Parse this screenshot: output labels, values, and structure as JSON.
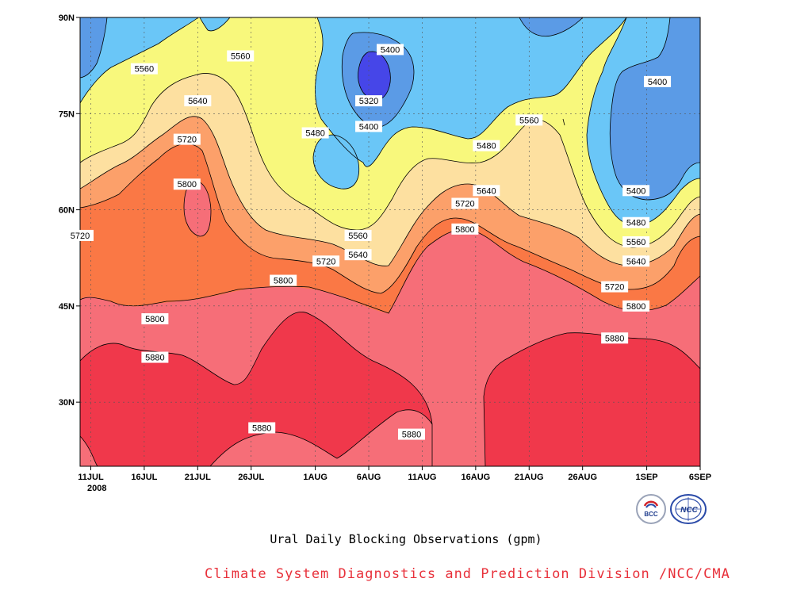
{
  "chart_data": {
    "type": "contour",
    "title": "Ural Daily Blocking Observations (gpm)",
    "credit": "Climate System Diagnostics and Prediction Division /NCC/CMA",
    "x_ticks": [
      "11JUL",
      "16JUL",
      "21JUL",
      "26JUL",
      "1AUG",
      "6AUG",
      "11AUG",
      "16AUG",
      "21AUG",
      "26AUG",
      "1SEP",
      "6SEP"
    ],
    "x_year_label": "2008",
    "y_ticks": [
      "90N",
      "75N",
      "60N",
      "45N",
      "30N"
    ],
    "xlim": [
      "2008-07-10",
      "2008-09-06"
    ],
    "ylim_deg": [
      20,
      90
    ],
    "grid": "dotted",
    "levels": [
      5320,
      5400,
      5480,
      5560,
      5640,
      5720,
      5800,
      5880
    ],
    "contour_labels": [
      {
        "text": "5560",
        "date": "2008-07-16",
        "lat": 82
      },
      {
        "text": "5560",
        "date": "2008-07-25",
        "lat": 84
      },
      {
        "text": "5640",
        "date": "2008-07-21",
        "lat": 77
      },
      {
        "text": "5720",
        "date": "2008-07-20",
        "lat": 71
      },
      {
        "text": "5800",
        "date": "2008-07-20",
        "lat": 64
      },
      {
        "text": "5720",
        "date": "2008-07-10",
        "lat": 56
      },
      {
        "text": "5400",
        "date": "2008-08-08",
        "lat": 85
      },
      {
        "text": "5320",
        "date": "2008-08-06",
        "lat": 77
      },
      {
        "text": "5400",
        "date": "2008-08-06",
        "lat": 73
      },
      {
        "text": "5480",
        "date": "2008-08-01",
        "lat": 72
      },
      {
        "text": "5480",
        "date": "2008-08-17",
        "lat": 70
      },
      {
        "text": "5560",
        "date": "2008-08-21",
        "lat": 74
      },
      {
        "text": "5640",
        "date": "2008-08-17",
        "lat": 63
      },
      {
        "text": "5720",
        "date": "2008-08-15",
        "lat": 61
      },
      {
        "text": "5800",
        "date": "2008-08-15",
        "lat": 57
      },
      {
        "text": "5560",
        "date": "2008-08-05",
        "lat": 56
      },
      {
        "text": "5640",
        "date": "2008-08-05",
        "lat": 53
      },
      {
        "text": "5720",
        "date": "2008-08-02",
        "lat": 52
      },
      {
        "text": "5800",
        "date": "2008-07-29",
        "lat": 49
      },
      {
        "text": "5800",
        "date": "2008-07-17",
        "lat": 43
      },
      {
        "text": "5880",
        "date": "2008-07-17",
        "lat": 37
      },
      {
        "text": "5880",
        "date": "2008-07-27",
        "lat": 26
      },
      {
        "text": "5880",
        "date": "2008-08-10",
        "lat": 25
      },
      {
        "text": "5880",
        "date": "2008-08-29",
        "lat": 40
      },
      {
        "text": "5400",
        "date": "2008-09-02",
        "lat": 80
      },
      {
        "text": "5400",
        "date": "2008-08-31",
        "lat": 63
      },
      {
        "text": "5480",
        "date": "2008-08-31",
        "lat": 58
      },
      {
        "text": "5560",
        "date": "2008-08-31",
        "lat": 55
      },
      {
        "text": "5640",
        "date": "2008-08-31",
        "lat": 52
      },
      {
        "text": "5720",
        "date": "2008-08-29",
        "lat": 48
      },
      {
        "text": "5800",
        "date": "2008-08-31",
        "lat": 45
      }
    ],
    "fill_colors": {
      "5320": "#4646e8",
      "5400": "#5b9be6",
      "5480": "#6ac6f7",
      "5560": "#f8f87c",
      "5640": "#fde0a0",
      "5720": "#fca06a",
      "5800": "#fa7845",
      "5880": "#f66e78",
      "high": "#f0384b"
    }
  },
  "logos": [
    {
      "name": "bcc-logo",
      "text": "BCC"
    },
    {
      "name": "ncc-logo",
      "text": "NCC"
    }
  ]
}
